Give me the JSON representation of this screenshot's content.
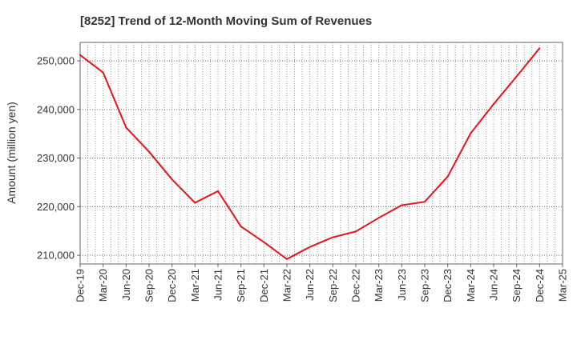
{
  "chart_data": {
    "type": "line",
    "title": "[8252]  Trend of 12-Month Moving Sum of Revenues",
    "xlabel": "",
    "ylabel": "Amount (million yen)",
    "ylim": [
      208200,
      253800
    ],
    "yticks": [
      210000,
      220000,
      230000,
      240000,
      250000
    ],
    "ytick_labels": [
      "210,000",
      "220,000",
      "230,000",
      "240,000",
      "250,000"
    ],
    "x_tick_labels": [
      "Dec-19",
      "Mar-20",
      "Jun-20",
      "Sep-20",
      "Dec-20",
      "Mar-21",
      "Jun-21",
      "Sep-21",
      "Dec-21",
      "Mar-22",
      "Jun-22",
      "Sep-22",
      "Dec-22",
      "Mar-23",
      "Jun-23",
      "Sep-23",
      "Dec-23",
      "Mar-24",
      "Jun-24",
      "Sep-24",
      "Dec-24",
      "Mar-25"
    ],
    "grid": true,
    "series": [
      {
        "color": "#e8141a",
        "x": [
          "Dec-19",
          "Mar-20",
          "Jun-20",
          "Sep-20",
          "Dec-20",
          "Mar-21",
          "Jun-21",
          "Sep-21",
          "Dec-21",
          "Mar-22",
          "Jun-22",
          "Sep-22",
          "Dec-22",
          "Mar-23",
          "Jun-23",
          "Sep-23",
          "Dec-23",
          "Mar-24",
          "Jun-24",
          "Sep-24",
          "Dec-24"
        ],
        "values": [
          251200,
          247600,
          236300,
          231300,
          225600,
          220800,
          223200,
          215900,
          212700,
          209200,
          211700,
          213700,
          214900,
          217700,
          220300,
          221000,
          226200,
          235100,
          241100,
          246800,
          252600
        ]
      }
    ]
  }
}
